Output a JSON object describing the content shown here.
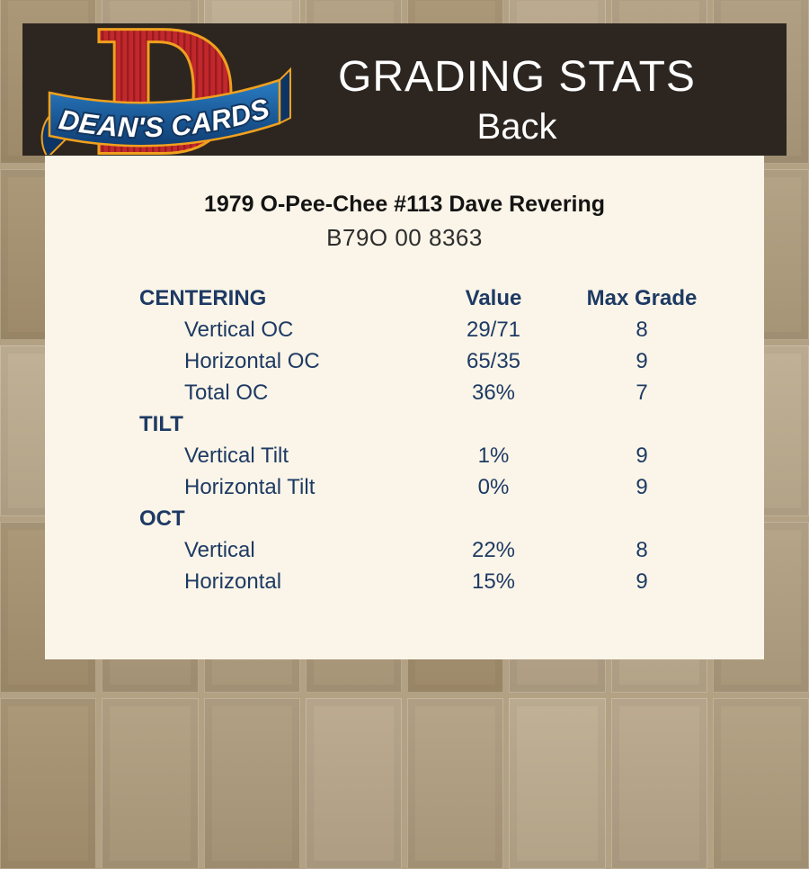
{
  "header": {
    "logo": {
      "letter": "D",
      "brand": "DEAN'S CARDS"
    },
    "title": "GRADING STATS",
    "subtitle": "Back"
  },
  "card": {
    "title": "1979 O-Pee-Chee #113 Dave Revering",
    "serial": "B79O 00 8363"
  },
  "table": {
    "columns": {
      "value": "Value",
      "max_grade": "Max Grade"
    },
    "sections": [
      {
        "label": "CENTERING",
        "rows": [
          {
            "label": "Vertical OC",
            "value": "29/71",
            "max_grade": "8"
          },
          {
            "label": "Horizontal OC",
            "value": "65/35",
            "max_grade": "9"
          },
          {
            "label": "Total OC",
            "value": "36%",
            "max_grade": "7"
          }
        ]
      },
      {
        "label": "TILT",
        "rows": [
          {
            "label": "Vertical Tilt",
            "value": "1%",
            "max_grade": "9"
          },
          {
            "label": "Horizontal Tilt",
            "value": "0%",
            "max_grade": "9"
          }
        ]
      },
      {
        "label": "OCT",
        "rows": [
          {
            "label": "Vertical",
            "value": "22%",
            "max_grade": "8"
          },
          {
            "label": "Horizontal",
            "value": "15%",
            "max_grade": "9"
          }
        ]
      }
    ]
  },
  "colors": {
    "page_background": "#b3a183",
    "header_bar": "#2d2620",
    "panel_background": "#faf5e8",
    "table_text_navy": "#1e3a64",
    "title_text": "#141414",
    "header_text": "#ffffff",
    "logo_red": "#c1282c",
    "logo_dark_red": "#9a1b1f",
    "logo_orange": "#f0a01e",
    "logo_blue": "#1d6ab0",
    "logo_dark_blue": "#0f3e74"
  }
}
